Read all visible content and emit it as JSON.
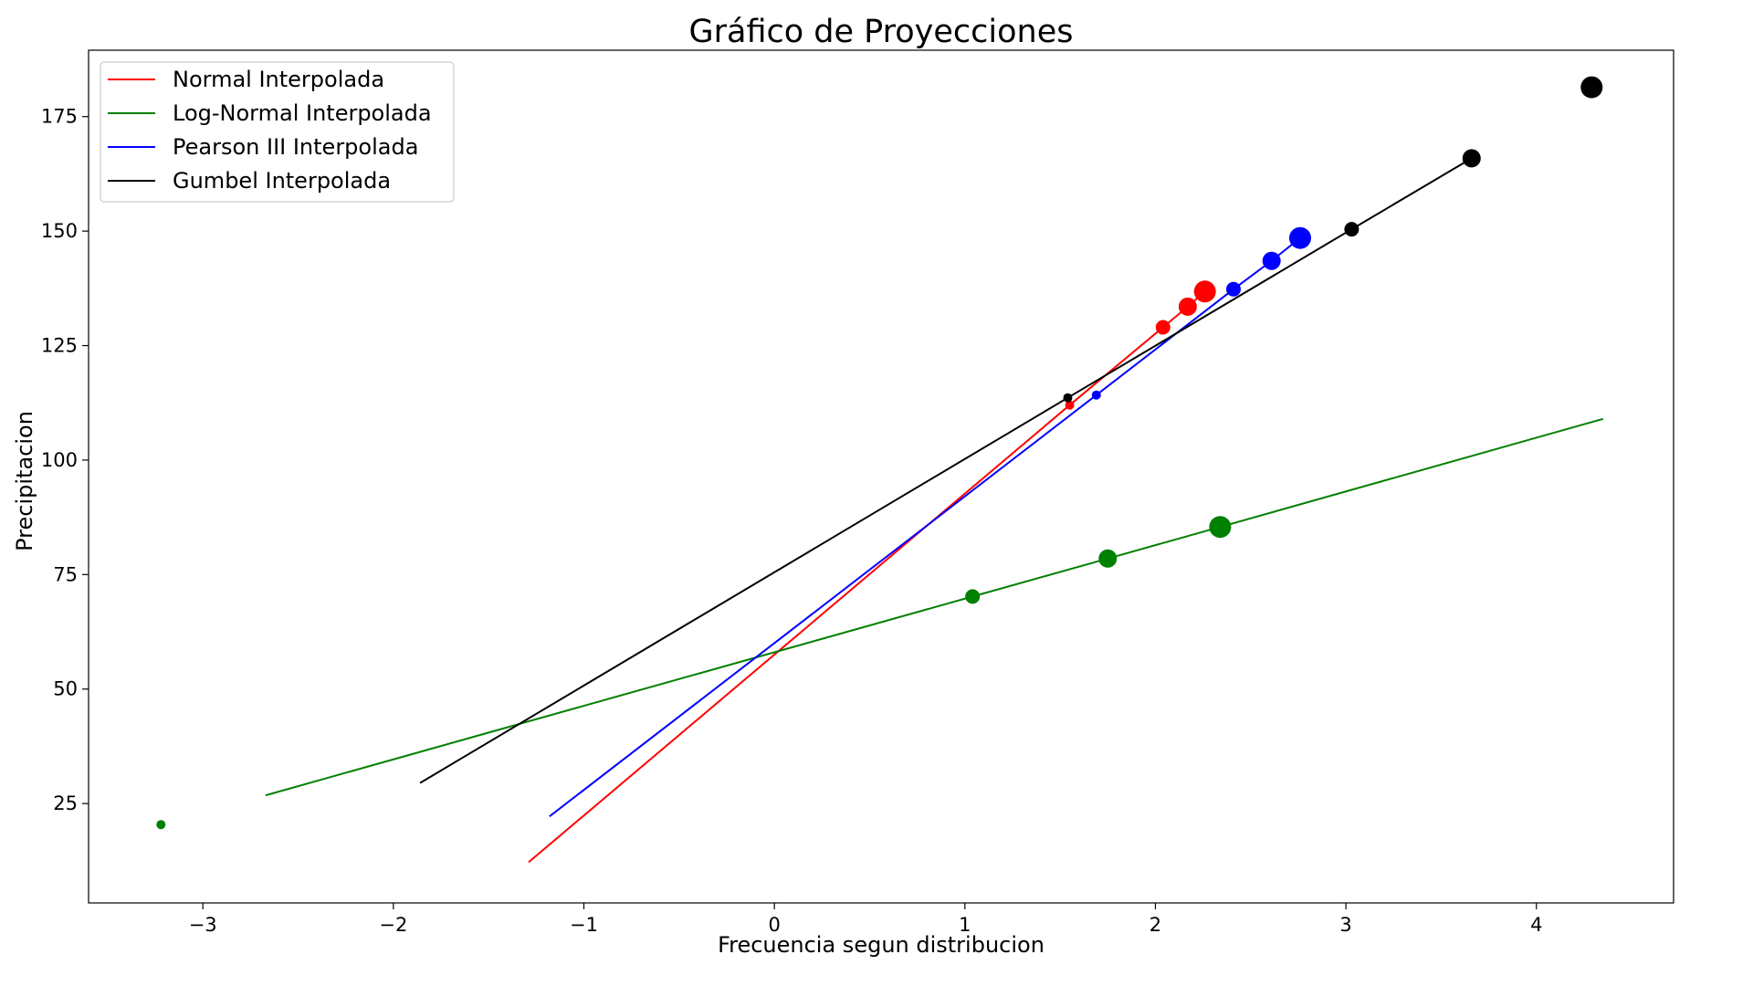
{
  "chart_data": {
    "type": "scatter",
    "title": "Gráfico de Proyecciones",
    "xlabel": "Frecuencia segun distribucion",
    "ylabel": "Precipitacion",
    "xlim": [
      -3.6,
      4.72
    ],
    "ylim": [
      3.3,
      189.5
    ],
    "xticks": [
      -3,
      -2,
      -1,
      0,
      1,
      2,
      3,
      4
    ],
    "xtick_labels": [
      "−3",
      "−2",
      "−1",
      "0",
      "1",
      "2",
      "3",
      "4"
    ],
    "yticks": [
      25,
      50,
      75,
      100,
      125,
      150,
      175
    ],
    "ytick_labels": [
      "25",
      "50",
      "75",
      "100",
      "125",
      "150",
      "175"
    ],
    "grid": false,
    "legend_position": "top-left",
    "series": [
      {
        "name": "Normal Interpolada",
        "color": "#ff0000",
        "line": [
          [
            -1.29,
            12.2
          ],
          [
            1.55,
            112.0
          ],
          [
            2.04,
            129.0
          ],
          [
            2.17,
            133.5
          ],
          [
            2.26,
            136.8
          ]
        ],
        "points": [
          {
            "x": 1.55,
            "y": 112.0,
            "size": 5
          },
          {
            "x": 2.04,
            "y": 129.0,
            "size": 8
          },
          {
            "x": 2.17,
            "y": 133.5,
            "size": 10
          },
          {
            "x": 2.26,
            "y": 136.8,
            "size": 12
          }
        ]
      },
      {
        "name": "Log-Normal Interpolada",
        "color": "#008000",
        "line": [
          [
            -2.67,
            26.8
          ],
          [
            1.04,
            70.2
          ],
          [
            1.75,
            78.5
          ],
          [
            2.34,
            85.4
          ],
          [
            4.35,
            109.0
          ]
        ],
        "points": [
          {
            "x": -3.22,
            "y": 20.4,
            "size": 5
          },
          {
            "x": 1.04,
            "y": 70.2,
            "size": 8
          },
          {
            "x": 1.75,
            "y": 78.5,
            "size": 10
          },
          {
            "x": 2.34,
            "y": 85.4,
            "size": 12
          }
        ]
      },
      {
        "name": "Pearson III Interpolada",
        "color": "#0000ff",
        "line": [
          [
            -1.18,
            22.2
          ],
          [
            1.69,
            114.2
          ],
          [
            2.41,
            137.3
          ],
          [
            2.61,
            143.5
          ],
          [
            2.76,
            148.5
          ]
        ],
        "points": [
          {
            "x": 1.69,
            "y": 114.2,
            "size": 5
          },
          {
            "x": 2.41,
            "y": 137.3,
            "size": 8
          },
          {
            "x": 2.61,
            "y": 143.5,
            "size": 10
          },
          {
            "x": 2.76,
            "y": 148.5,
            "size": 12
          }
        ]
      },
      {
        "name": "Gumbel Interpolada",
        "color": "#000000",
        "line": [
          [
            -1.86,
            29.5
          ],
          [
            1.54,
            113.6
          ],
          [
            3.03,
            150.4
          ],
          [
            3.66,
            165.9
          ]
        ],
        "points": [
          {
            "x": 1.54,
            "y": 113.6,
            "size": 5
          },
          {
            "x": 3.03,
            "y": 150.4,
            "size": 8
          },
          {
            "x": 3.66,
            "y": 165.9,
            "size": 10
          },
          {
            "x": 4.29,
            "y": 181.4,
            "size": 12
          }
        ]
      }
    ]
  }
}
